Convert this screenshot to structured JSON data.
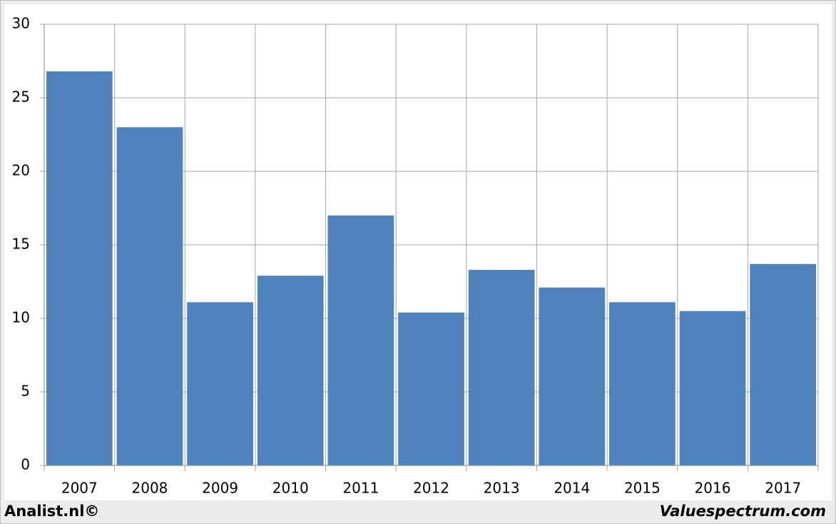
{
  "chart_data": {
    "type": "bar",
    "categories": [
      "2007",
      "2008",
      "2009",
      "2010",
      "2011",
      "2012",
      "2013",
      "2014",
      "2015",
      "2016",
      "2017"
    ],
    "values": [
      26.8,
      23.0,
      11.1,
      12.9,
      17.0,
      10.4,
      13.3,
      12.1,
      11.1,
      10.5,
      13.7
    ],
    "color": "#4f81bd",
    "ylim": [
      0,
      30
    ],
    "yticks": [
      0,
      5,
      10,
      15,
      20,
      25,
      30
    ],
    "grid": true,
    "footer_left": "Analist.nl©",
    "footer_right": "Valuespectrum.com"
  }
}
